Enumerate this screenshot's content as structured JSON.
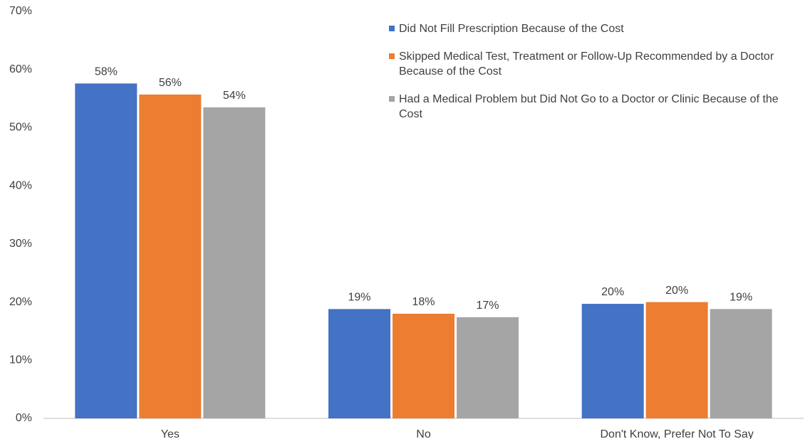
{
  "chart_data": {
    "type": "bar",
    "categories": [
      "Yes",
      "No",
      "Don't Know, Prefer Not To Say"
    ],
    "series": [
      {
        "name": "Did Not Fill Prescription Because of the Cost",
        "color": "#4472c4",
        "values": [
          57.6,
          18.8,
          19.7
        ],
        "value_labels": [
          "58%",
          "19%",
          "20%"
        ]
      },
      {
        "name": "Skipped Medical Test, Treatment or Follow-Up Recommended by a Doctor Because of the Cost",
        "color": "#ed7d31",
        "values": [
          55.7,
          18.0,
          20.0
        ],
        "value_labels": [
          "56%",
          "18%",
          "20%"
        ]
      },
      {
        "name": "Had a Medical Problem but Did Not Go to a Doctor or Clinic Because of the Cost",
        "color": "#a5a5a5",
        "values": [
          53.5,
          17.4,
          18.8
        ],
        "value_labels": [
          "54%",
          "17%",
          "19%"
        ]
      }
    ],
    "ylim": [
      0,
      70
    ],
    "yticks": [
      {
        "value": 0,
        "label": "0%"
      },
      {
        "value": 10,
        "label": "10%"
      },
      {
        "value": 20,
        "label": "20%"
      },
      {
        "value": 30,
        "label": "30%"
      },
      {
        "value": 40,
        "label": "40%"
      },
      {
        "value": 50,
        "label": "50%"
      },
      {
        "value": 60,
        "label": "60%"
      },
      {
        "value": 70,
        "label": "70%"
      }
    ],
    "grid": false,
    "legend": "top-right"
  }
}
